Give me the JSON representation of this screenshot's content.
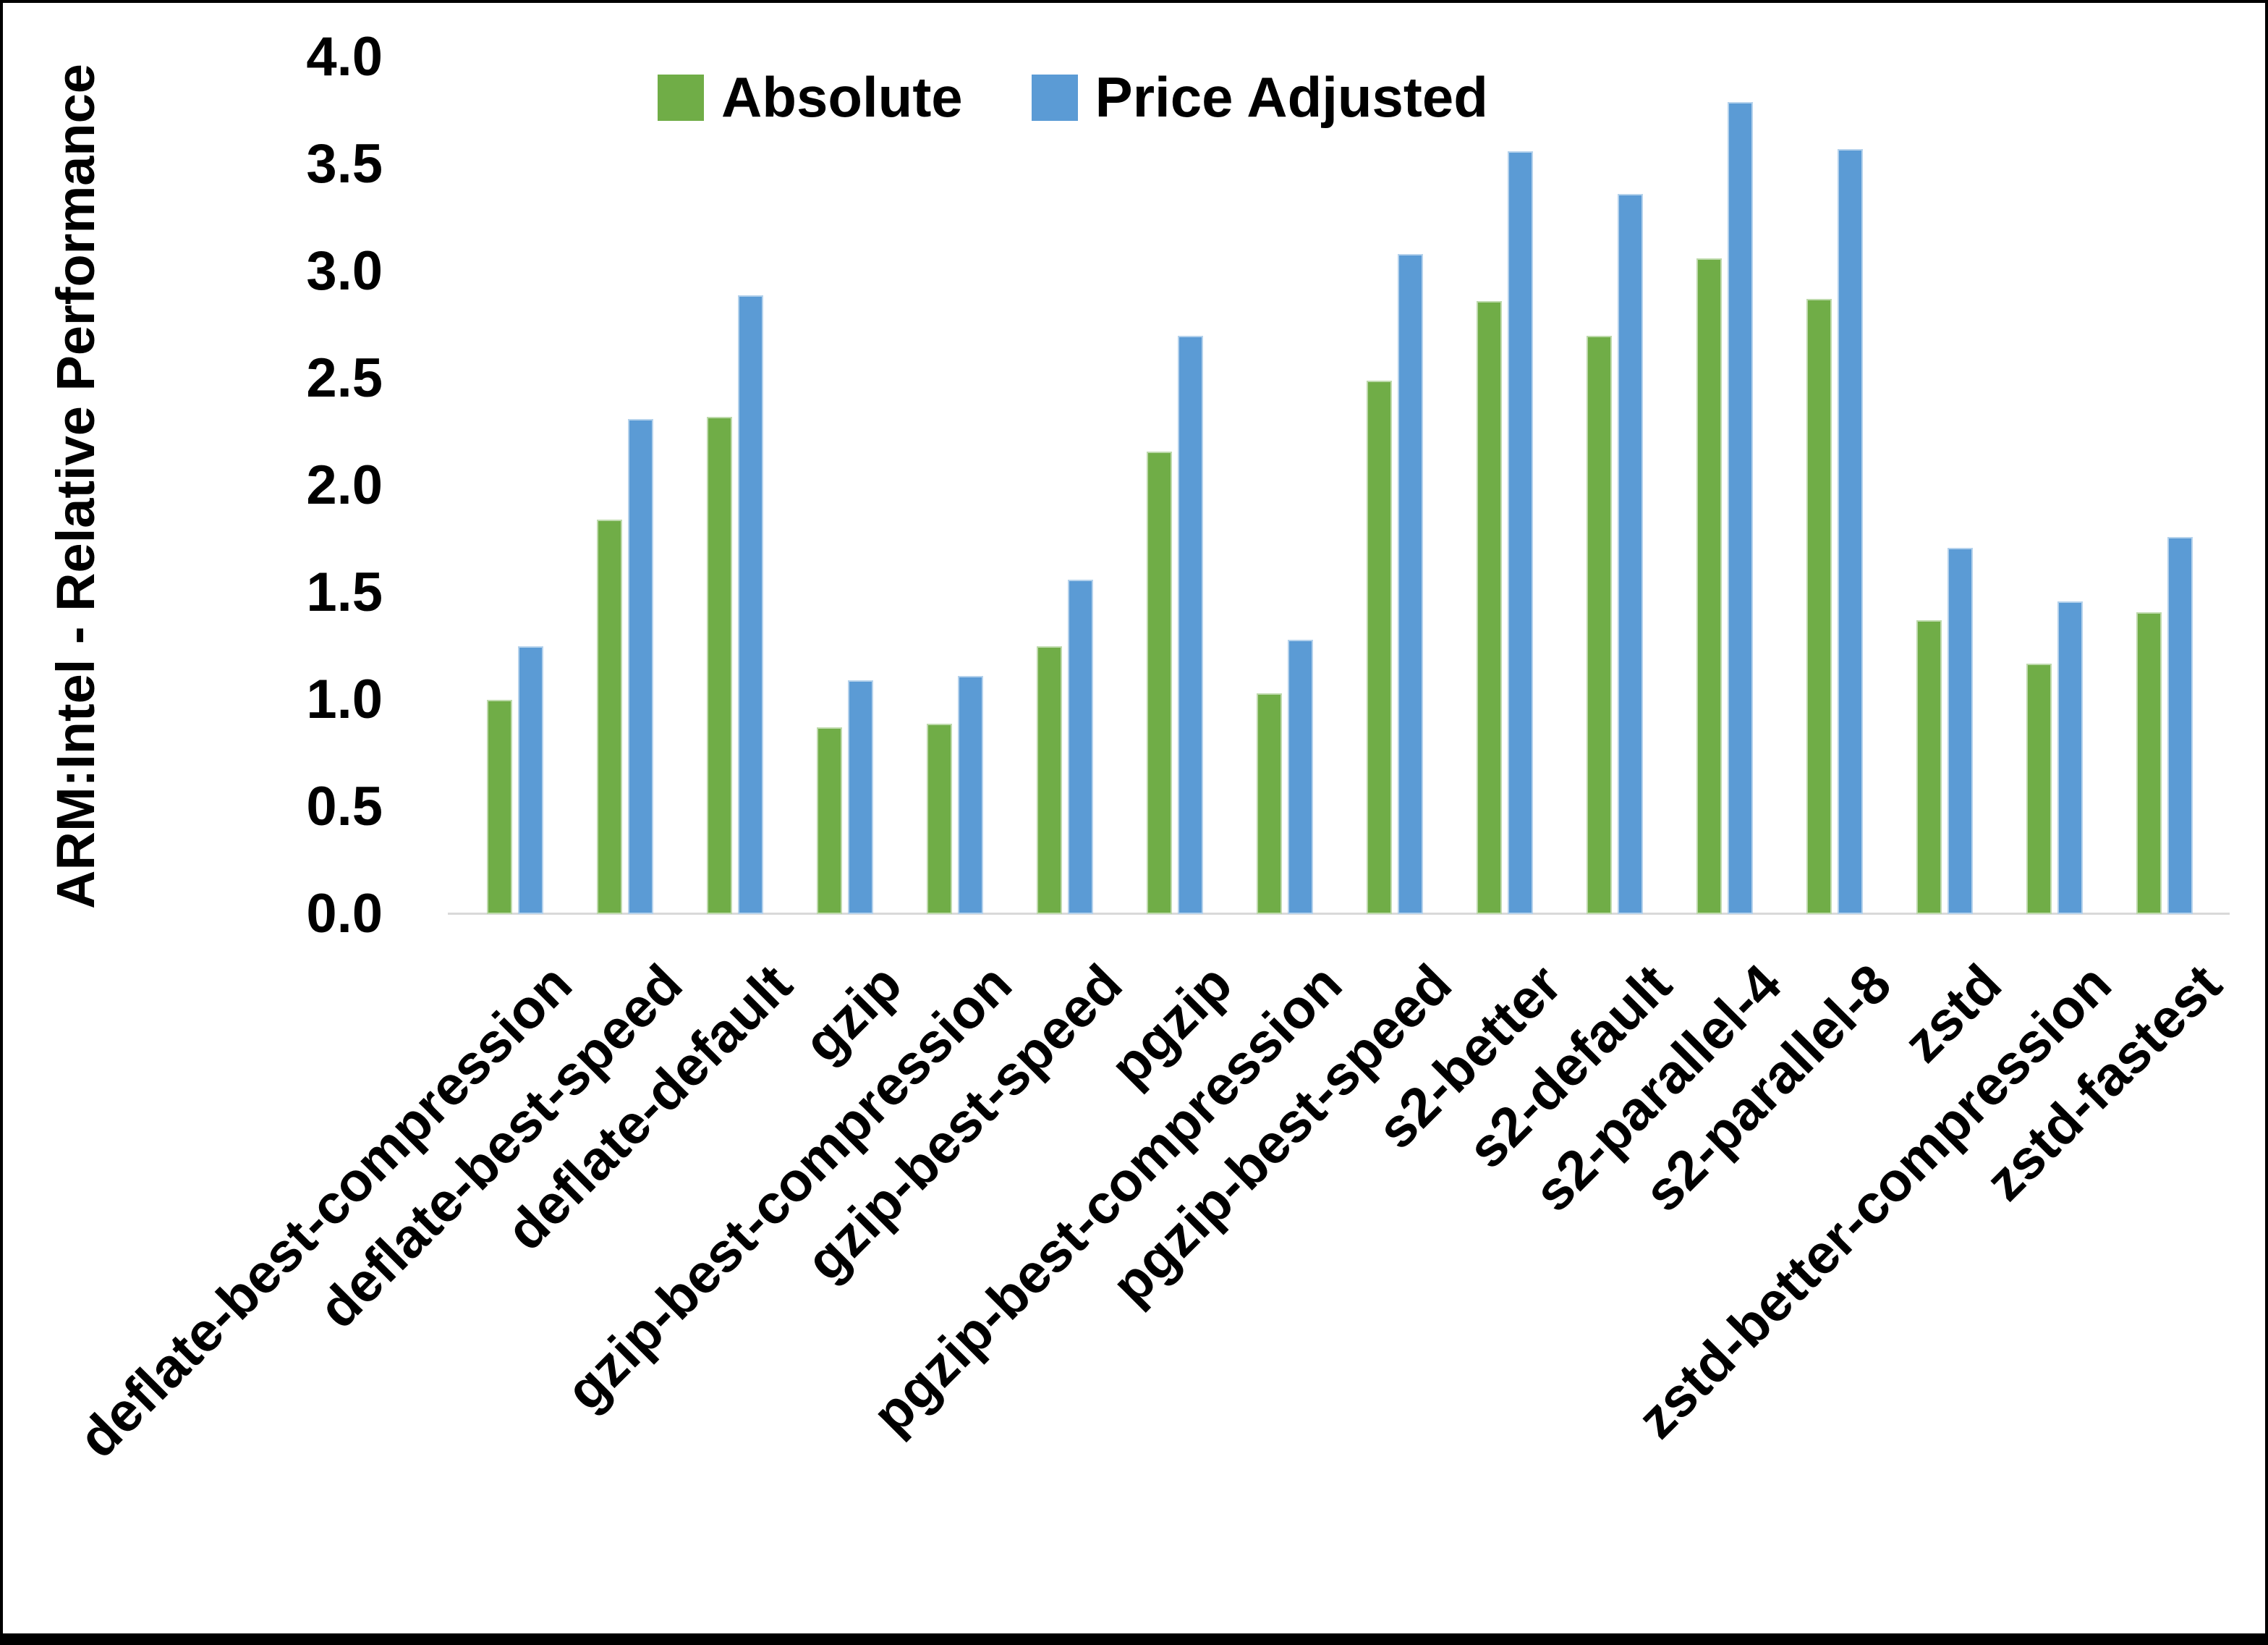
{
  "chart_data": {
    "type": "bar",
    "title": "",
    "xlabel": "",
    "ylabel": "ARM:Intel - Relative Performance",
    "ylim": [
      0,
      4
    ],
    "ytick_step": 0.5,
    "yticks": [
      "0.0",
      "0.5",
      "1.0",
      "1.5",
      "2.0",
      "2.5",
      "3.0",
      "3.5",
      "4.0"
    ],
    "grid": false,
    "legend_position": "top-center",
    "categories": [
      "deflate-best-compression",
      "deflate-best-speed",
      "deflate-default",
      "gzip",
      "gzip-best-compression",
      "gzip-best-speed",
      "pgzip",
      "pgzip-best-compression",
      "pgzip-best-speed",
      "s2-better",
      "s2-default",
      "s2-parallel-4",
      "s2-parallel-8",
      "zstd",
      "zstd-better-compression",
      "zstd-fastest"
    ],
    "series": [
      {
        "name": "Absolute",
        "color": "#70AD47",
        "values": [
          1.0,
          1.84,
          2.32,
          0.87,
          0.89,
          1.25,
          2.16,
          1.03,
          2.49,
          2.86,
          2.7,
          3.06,
          2.87,
          1.37,
          1.17,
          1.41
        ]
      },
      {
        "name": "Price Adjusted",
        "color": "#5B9BD5",
        "values": [
          1.25,
          2.31,
          2.89,
          1.09,
          1.11,
          1.56,
          2.7,
          1.28,
          3.08,
          3.56,
          3.36,
          3.79,
          3.57,
          1.71,
          1.46,
          1.76
        ]
      }
    ]
  },
  "colors": {
    "background": "#FFFFFF",
    "border": "#000000",
    "axis_line": "#D9D9D9",
    "text": "#000000"
  }
}
